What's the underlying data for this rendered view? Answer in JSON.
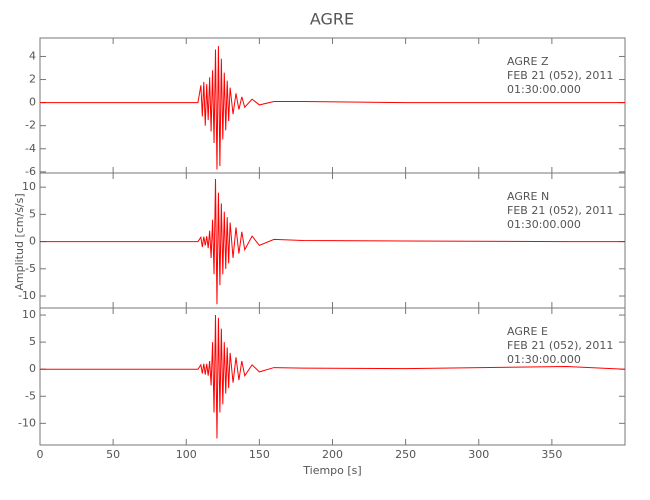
{
  "title": "AGRE",
  "ylabel": "Amplitud [cm/s/s]",
  "chart_data": [
    {
      "type": "line",
      "station": "AGRE   Z",
      "date": "FEB 21 (052), 2011",
      "time": "01:30:00.000",
      "xlim": [
        0,
        400
      ],
      "xticks": [
        0,
        50,
        100,
        150,
        200,
        250,
        300,
        350
      ],
      "ylim": [
        -6.1,
        5.6
      ],
      "yticks": [
        -6,
        -4,
        -2,
        0,
        2,
        4
      ],
      "x": [
        0,
        50,
        100,
        108,
        110,
        111,
        112,
        113,
        114,
        115,
        116,
        117,
        118,
        119,
        120,
        121,
        122,
        123,
        124,
        125,
        126,
        127,
        128,
        129,
        130,
        132,
        134,
        136,
        138,
        140,
        145,
        150,
        160,
        180,
        250,
        360,
        400
      ],
      "series": [
        {
          "color": "#ff0000",
          "values": [
            0,
            0,
            0,
            0,
            1.5,
            -1.2,
            1.8,
            -2,
            1.6,
            -1.5,
            2.2,
            -2.5,
            2.8,
            -3.5,
            4.6,
            -5.8,
            4.9,
            -5.5,
            3.8,
            -3.2,
            2.6,
            -2.4,
            1.9,
            -1.6,
            1.3,
            -1.0,
            0.8,
            -0.6,
            0.5,
            -0.4,
            0.3,
            -0.2,
            0.1,
            0.1,
            0,
            0,
            0
          ]
        }
      ]
    },
    {
      "type": "line",
      "station": "AGRE   N",
      "date": "FEB 21 (052), 2011",
      "time": "01:30:00.000",
      "xlim": [
        0,
        400
      ],
      "xticks": [
        0,
        50,
        100,
        150,
        200,
        250,
        300,
        350
      ],
      "ylim": [
        -12.2,
        12.6
      ],
      "yticks": [
        -10,
        -5,
        0,
        5,
        10
      ],
      "x": [
        0,
        50,
        100,
        108,
        110,
        111,
        112,
        113,
        114,
        115,
        116,
        117,
        118,
        119,
        120,
        121,
        122,
        123,
        124,
        125,
        126,
        127,
        128,
        129,
        130,
        132,
        134,
        136,
        138,
        140,
        145,
        150,
        160,
        180,
        250,
        360,
        400
      ],
      "series": [
        {
          "color": "#ff0000",
          "values": [
            0,
            0,
            0,
            0,
            0.8,
            -1,
            0.9,
            -0.7,
            1,
            -1.2,
            2,
            -3,
            4,
            -6,
            11.5,
            -11.5,
            9,
            -8,
            7,
            -6,
            5.5,
            -5,
            4.5,
            -4,
            3.5,
            -3,
            2.6,
            -2.2,
            1.8,
            -1.5,
            1.0,
            -0.7,
            0.4,
            0.2,
            0.1,
            0,
            0
          ]
        }
      ]
    },
    {
      "type": "line",
      "station": "AGRE   E",
      "date": "FEB 21 (052), 2011",
      "time": "01:30:00.000",
      "xlim": [
        0,
        400
      ],
      "xticks": [
        0,
        50,
        100,
        150,
        200,
        250,
        300,
        350
      ],
      "ylim": [
        -14,
        11.3
      ],
      "yticks": [
        -10,
        -5,
        0,
        5,
        10
      ],
      "xlabel": "Tiempo [s]",
      "x": [
        0,
        50,
        100,
        108,
        110,
        111,
        112,
        113,
        114,
        115,
        116,
        117,
        118,
        119,
        120,
        121,
        122,
        123,
        124,
        125,
        126,
        127,
        128,
        129,
        130,
        132,
        134,
        136,
        138,
        140,
        145,
        150,
        160,
        180,
        250,
        360,
        400
      ],
      "series": [
        {
          "color": "#ff0000",
          "values": [
            0,
            0,
            0,
            0,
            0.8,
            -0.8,
            1,
            -1,
            1,
            -1.2,
            1.5,
            -3,
            5,
            -8,
            10,
            -12.8,
            9.5,
            -8,
            7.5,
            -6.5,
            5,
            -4.5,
            4,
            -3.5,
            3,
            -2.5,
            2.2,
            -2,
            1.5,
            -1.2,
            0.8,
            -0.5,
            0.3,
            0.2,
            0.1,
            0.5,
            0
          ]
        }
      ]
    }
  ]
}
